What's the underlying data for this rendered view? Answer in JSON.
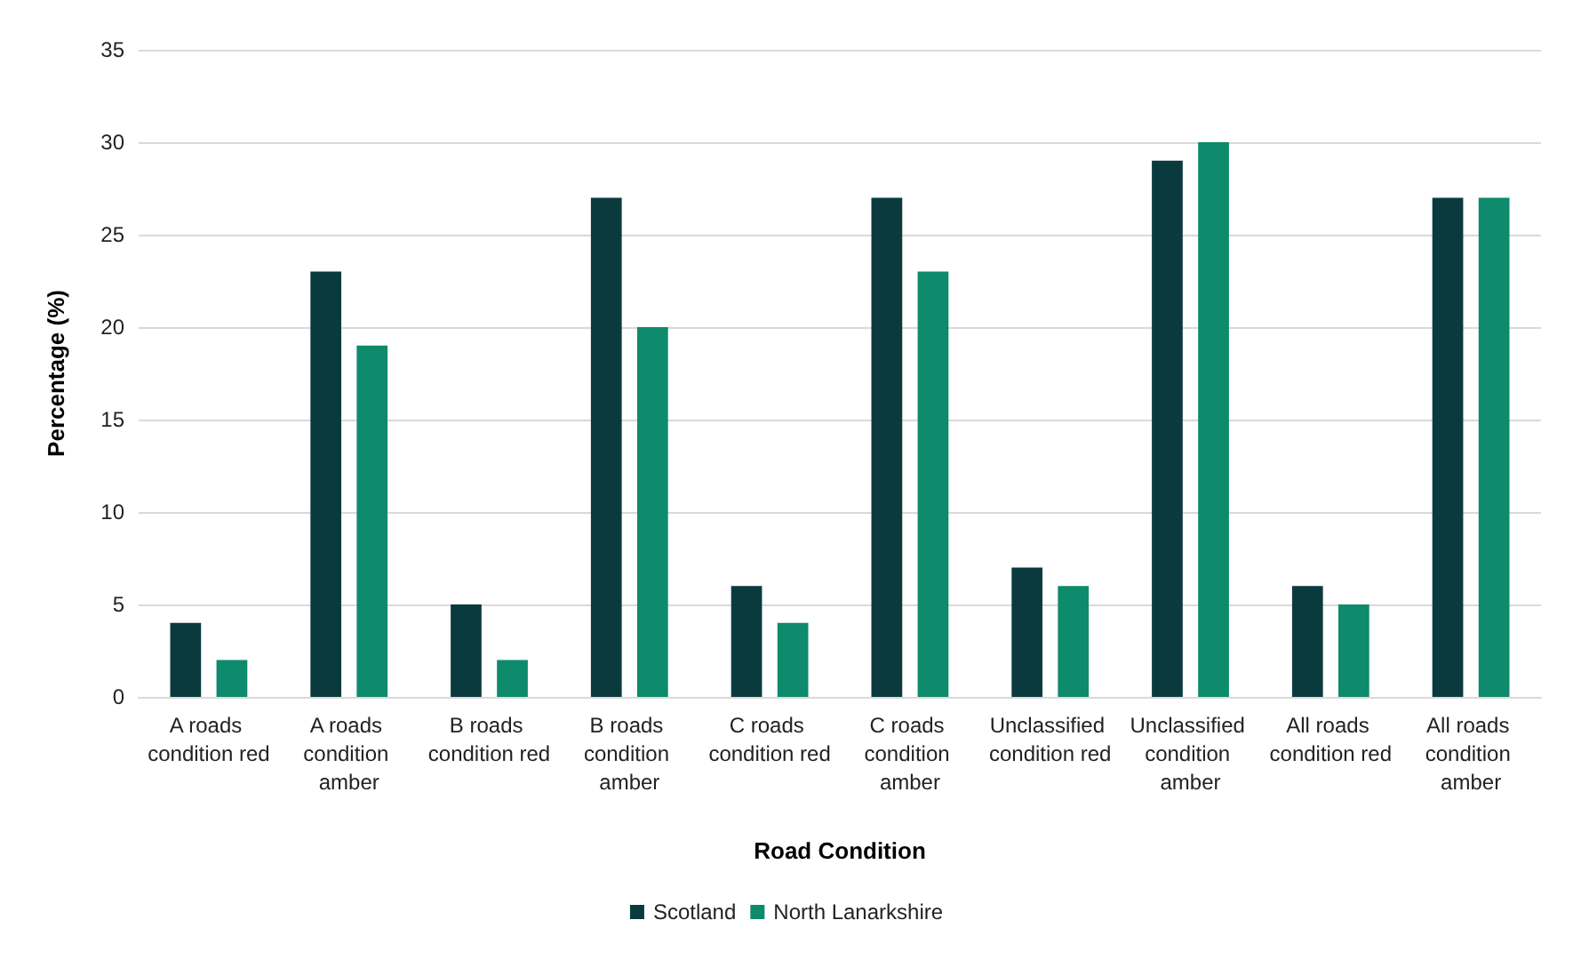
{
  "chart_data": {
    "type": "bar",
    "xlabel": "Road Condition",
    "ylabel": "Percentage (%)",
    "categories": [
      "A roads condition red",
      "A roads condition amber",
      "B roads condition red",
      "B roads condition amber",
      "C roads condition red",
      "C roads condition amber",
      "Unclassified condition red",
      "Unclassified condition amber",
      "All roads condition red",
      "All roads condition amber"
    ],
    "series": [
      {
        "name": "Scotland",
        "color": "#0b3a3e",
        "values": [
          4,
          23,
          5,
          27,
          6,
          27,
          7,
          29,
          6,
          27
        ]
      },
      {
        "name": "North Lanarkshire",
        "color": "#0e8a6c",
        "values": [
          2,
          19,
          2,
          20,
          4,
          23,
          6,
          30,
          5,
          27
        ]
      }
    ],
    "ylim": [
      0,
      35
    ],
    "yticks": [
      0,
      5,
      10,
      15,
      20,
      25,
      30,
      35
    ],
    "grid": "y",
    "legend": "bottom"
  }
}
